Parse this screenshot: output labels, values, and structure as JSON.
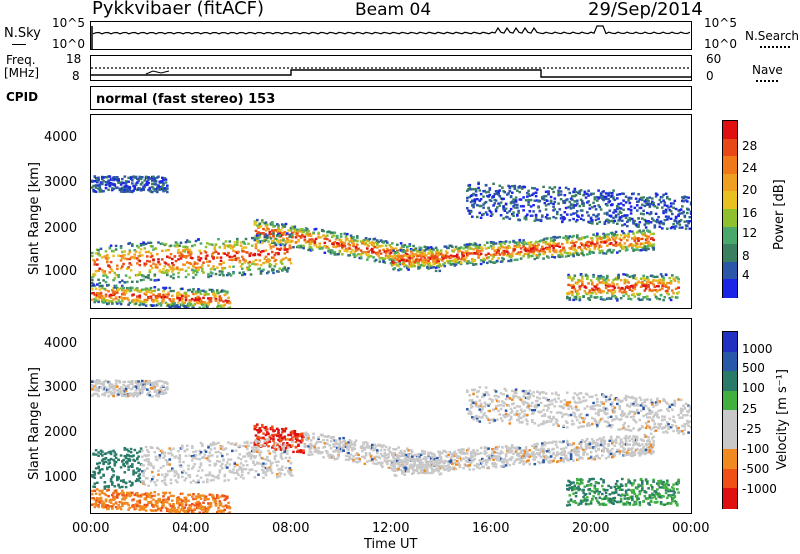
{
  "header": {
    "station": "Pykkvibaer (fitACF)",
    "beam": "Beam 04",
    "date": "29/Sep/2014"
  },
  "nsky_panel": {
    "left_label": "N.Sky",
    "left_ticks": [
      "10^5",
      "10^0"
    ],
    "right_ticks": [
      "10^5",
      "10^0"
    ],
    "right_label": "N.Search"
  },
  "freq_panel": {
    "left_label_line1": "Freq.",
    "left_label_line2": "[MHz]",
    "left_ticks": [
      "18",
      "8"
    ],
    "right_ticks": [
      "60",
      "0"
    ],
    "right_label": "Nave"
  },
  "cpid_panel": {
    "label": "CPID",
    "text": "normal (fast stereo) 153"
  },
  "colors": {
    "power": [
      "#1a25e8",
      "#2c56a8",
      "#3a8060",
      "#4aa86a",
      "#8ec030",
      "#e8c020",
      "#f0a020",
      "#f07818",
      "#e84818",
      "#e01010"
    ],
    "velocity": [
      "#e01010",
      "#f05018",
      "#f08a20",
      "#c8c8c8",
      "#c8c8c8",
      "#40b040",
      "#2a7a6a",
      "#2a58a8",
      "#2030c0"
    ]
  },
  "chart_data": [
    {
      "type": "heatmap",
      "name": "power-panel",
      "ylabel": "Slant Range [km]",
      "yticks": [
        "1000",
        "2000",
        "3000",
        "4000"
      ],
      "ylim": [
        200,
        4600
      ],
      "xlim": [
        0,
        24
      ],
      "colorbar_label": "Power [dB]",
      "colorbar_ticks": [
        "4",
        "8",
        "12",
        "16",
        "20",
        "24",
        "28"
      ],
      "colorbar_range": [
        0,
        30
      ]
    },
    {
      "type": "heatmap",
      "name": "velocity-panel",
      "ylabel": "Slant Range [km]",
      "yticks": [
        "1000",
        "2000",
        "3000",
        "4000"
      ],
      "ylim": [
        200,
        4600
      ],
      "xlim": [
        0,
        24
      ],
      "xticks": [
        "00:00",
        "04:00",
        "08:00",
        "12:00",
        "16:00",
        "20:00",
        "00:00"
      ],
      "xlabel": "Time UT",
      "colorbar_label": "Velocity [m s⁻¹]",
      "colorbar_ticks": [
        "1000",
        "500",
        "100",
        "25",
        "-25",
        "-100",
        "-500",
        "-1000"
      ]
    }
  ]
}
